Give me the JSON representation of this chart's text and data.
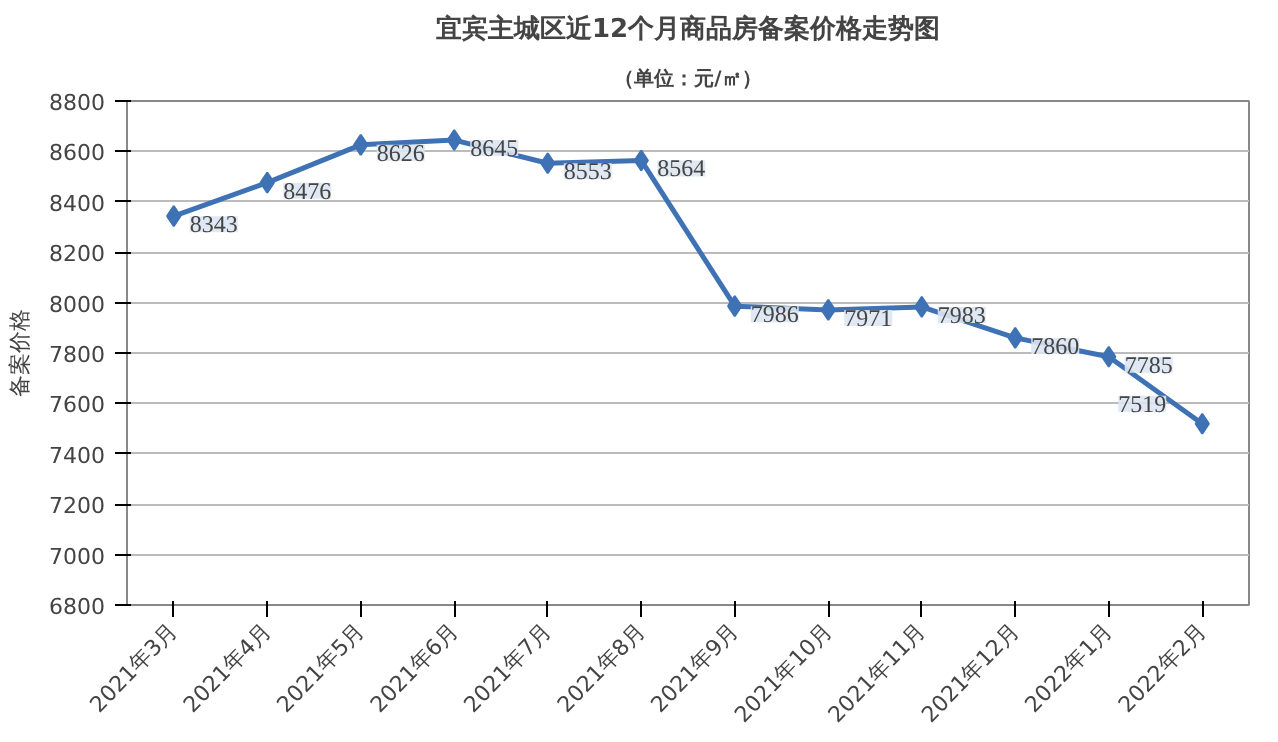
{
  "chart_data": {
    "type": "line",
    "title": "宜宾主城区近12个月商品房备案价格走势图",
    "subtitle": "（单位：元/㎡）",
    "ylabel": "备案价格",
    "categories": [
      "2021年3月",
      "2021年4月",
      "2021年5月",
      "2021年6月",
      "2021年7月",
      "2021年8月",
      "2021年9月",
      "2021年10月",
      "2021年11月",
      "2021年12月",
      "2022年1月",
      "2022年2月"
    ],
    "series": [
      {
        "color": "#3f72b5",
        "values": [
          8343,
          8476,
          8626,
          8645,
          8553,
          8564,
          7986,
          7971,
          7983,
          7860,
          7785,
          7519
        ]
      }
    ],
    "ylim": [
      6800,
      8800
    ],
    "yticks": [
      6800,
      7000,
      7200,
      7400,
      7600,
      7800,
      8000,
      8200,
      8400,
      8600,
      8800
    ],
    "grid": "y",
    "marker": "diamond",
    "line_style": "solid",
    "data_labels": true
  }
}
